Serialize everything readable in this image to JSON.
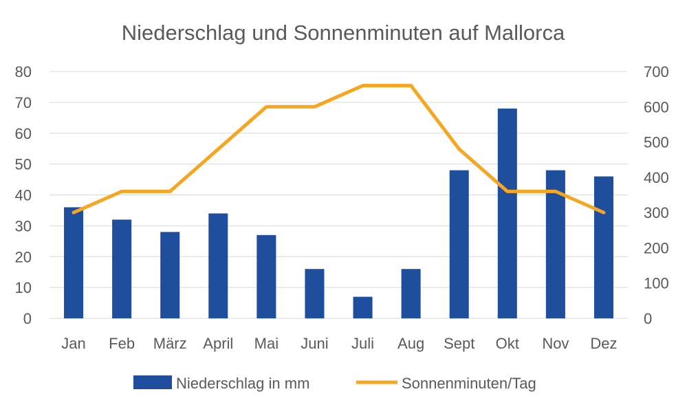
{
  "chart_data": {
    "type": "bar",
    "title": "Niederschlag und Sonnenminuten auf Mallorca",
    "categories": [
      "Jan",
      "Feb",
      "März",
      "April",
      "Mai",
      "Juni",
      "Juli",
      "Aug",
      "Sept",
      "Okt",
      "Nov",
      "Dez"
    ],
    "series": [
      {
        "name": "Niederschlag in mm",
        "type": "bar",
        "axis": "left",
        "color": "#1F4E9C",
        "values": [
          36,
          32,
          28,
          34,
          27,
          16,
          7,
          16,
          48,
          68,
          48,
          46
        ]
      },
      {
        "name": "Sonnenminuten/Tag",
        "type": "line",
        "axis": "right",
        "color": "#F5A623",
        "values": [
          300,
          360,
          360,
          480,
          600,
          600,
          660,
          660,
          480,
          360,
          360,
          300
        ]
      }
    ],
    "y_left": {
      "min": 0,
      "max": 80,
      "step": 10,
      "ticks": [
        "0",
        "10",
        "20",
        "30",
        "40",
        "50",
        "60",
        "70",
        "80"
      ]
    },
    "y_right": {
      "min": 0,
      "max": 700,
      "step": 100,
      "ticks": [
        "0",
        "100",
        "200",
        "300",
        "400",
        "500",
        "600",
        "700"
      ]
    },
    "grid": true,
    "legend": "bottom"
  }
}
